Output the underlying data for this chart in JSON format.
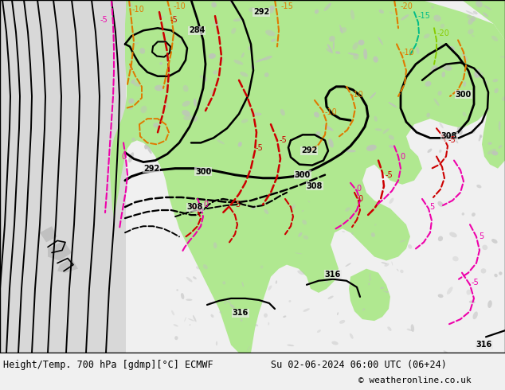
{
  "title_left": "Height/Temp. 700 hPa [gdmp][°C] ECMWF",
  "title_right": "Su 02-06-2024 06:00 UTC (06+24)",
  "copyright": "© weatheronline.co.uk",
  "bg_map": "#e8e8e8",
  "green_color": "#b0e890",
  "gray_land": "#c0c0c0",
  "bottom_bar_color": "#f0f0f0",
  "title_font_size": 8.5,
  "copyright_font_size": 8
}
